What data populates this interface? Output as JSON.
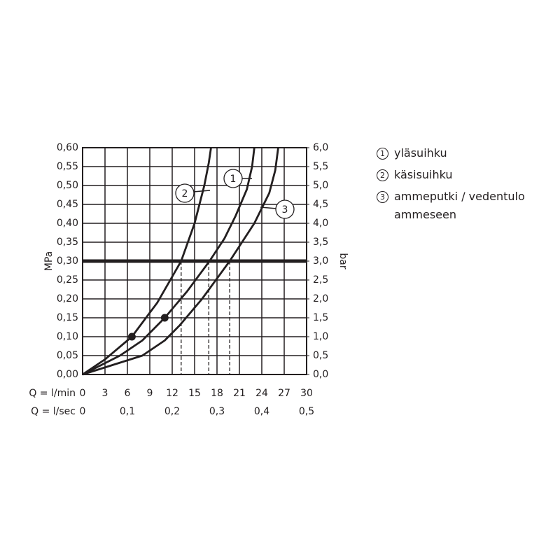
{
  "chart_data": {
    "type": "line",
    "x_label": "Q = l/min",
    "x2_label": "Q = l/sec",
    "y_label": "MPa",
    "y2_label": "bar",
    "xlim": [
      0,
      30
    ],
    "xticks": [
      0,
      3,
      6,
      9,
      12,
      15,
      18,
      21,
      24,
      27,
      30
    ],
    "x2lim": [
      0,
      0.5
    ],
    "x2ticks": [
      0,
      {
        "value": 0.1,
        "label": "0,1"
      },
      {
        "value": 0.2,
        "label": "0,2"
      },
      {
        "value": 0.3,
        "label": "0,3"
      },
      {
        "value": 0.4,
        "label": "0,4"
      },
      {
        "value": 0.5,
        "label": "0,5"
      }
    ],
    "ylim": [
      0,
      0.6
    ],
    "yticks": [
      {
        "value": 0,
        "label": "0,00"
      },
      {
        "value": 0.05,
        "label": "0,05"
      },
      {
        "value": 0.1,
        "label": "0,10"
      },
      {
        "value": 0.15,
        "label": "0,15"
      },
      {
        "value": 0.2,
        "label": "0,20"
      },
      {
        "value": 0.25,
        "label": "0,25"
      },
      {
        "value": 0.3,
        "label": "0,30"
      },
      {
        "value": 0.35,
        "label": "0,35"
      },
      {
        "value": 0.4,
        "label": "0,40"
      },
      {
        "value": 0.45,
        "label": "0,45"
      },
      {
        "value": 0.5,
        "label": "0,50"
      },
      {
        "value": 0.55,
        "label": "0,55"
      },
      {
        "value": 0.6,
        "label": "0,60"
      }
    ],
    "y2lim": [
      0,
      6
    ],
    "y2ticks": [
      {
        "value": 0,
        "label": "0,0"
      },
      {
        "value": 0.5,
        "label": "0,5"
      },
      {
        "value": 1,
        "label": "1,0"
      },
      {
        "value": 1.5,
        "label": "1,5"
      },
      {
        "value": 2,
        "label": "2,0"
      },
      {
        "value": 2.5,
        "label": "2,5"
      },
      {
        "value": 3,
        "label": "3,0"
      },
      {
        "value": 3.5,
        "label": "3,5"
      },
      {
        "value": 4,
        "label": "4,0"
      },
      {
        "value": 4.5,
        "label": "4,5"
      },
      {
        "value": 5,
        "label": "5,0"
      },
      {
        "value": 5.5,
        "label": "5,5"
      },
      {
        "value": 6,
        "label": "6,0"
      }
    ],
    "grid": true,
    "hline": 0.3,
    "vlines": [
      13.2,
      16.9,
      19.7
    ],
    "series": [
      {
        "name": "yläsuihku",
        "label": "1",
        "color": "#231f20",
        "x": [
          0,
          5,
          8,
          11,
          14,
          17,
          19,
          20.5,
          22,
          22.7,
          23
        ],
        "values": [
          0,
          0.05,
          0.09,
          0.15,
          0.22,
          0.3,
          0.36,
          0.42,
          0.49,
          0.55,
          0.6
        ],
        "dot": {
          "x": 11,
          "y": 0.15
        }
      },
      {
        "name": "käsisuihku",
        "label": "2",
        "color": "#231f20",
        "x": [
          0,
          3,
          6.6,
          10,
          13.2,
          15,
          16.3,
          16.9,
          17.2
        ],
        "values": [
          0,
          0.04,
          0.1,
          0.19,
          0.3,
          0.4,
          0.5,
          0.56,
          0.6
        ],
        "dot": {
          "x": 6.6,
          "y": 0.1
        }
      },
      {
        "name": "ammeputki / vedentulo ammeseen",
        "label": "3",
        "color": "#231f20",
        "x": [
          0,
          4,
          8,
          11,
          13,
          16,
          19.7,
          23,
          25,
          25.8,
          26.2
        ],
        "values": [
          0,
          0.025,
          0.05,
          0.09,
          0.13,
          0.2,
          0.3,
          0.4,
          0.48,
          0.54,
          0.6
        ]
      }
    ]
  }
}
